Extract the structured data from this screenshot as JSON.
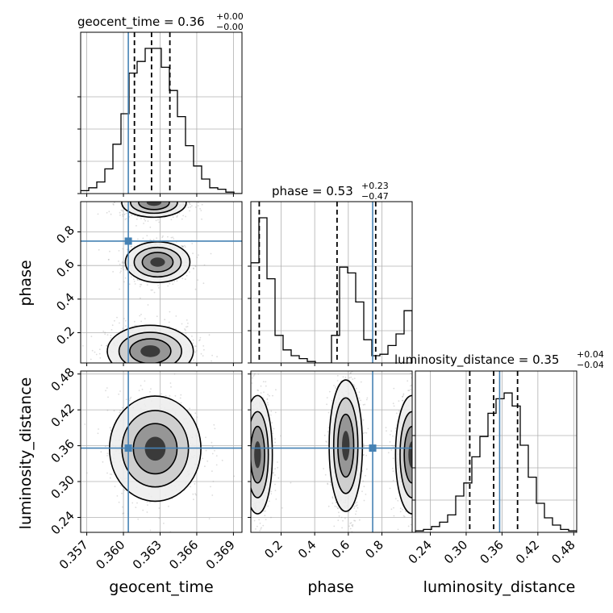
{
  "chart_data": {
    "type": "corner",
    "parameters": [
      "geocent_time",
      "phase",
      "luminosity_distance"
    ],
    "axis_labels": {
      "x": [
        "geocent_time",
        "phase",
        "luminosity_distance"
      ],
      "y": [
        "",
        "phase",
        "luminosity_distance"
      ]
    },
    "titles": [
      {
        "param": "geocent_time",
        "value": "0.36",
        "plus": "+0.00",
        "minus": "−0.00"
      },
      {
        "param": "phase",
        "value": "0.53",
        "plus": "+0.23",
        "minus": "−0.47"
      },
      {
        "param": "luminosity_distance",
        "value": "0.35",
        "plus": "+0.04",
        "minus": "−0.04"
      }
    ],
    "ranges": {
      "geocent_time": [
        0.3565,
        0.3697
      ],
      "phase": [
        0.02,
        0.98
      ],
      "luminosity_distance": [
        0.215,
        0.485
      ]
    },
    "ticks": {
      "geocent_time": [
        0.357,
        0.36,
        0.363,
        0.366,
        0.369
      ],
      "phase": [
        0.2,
        0.4,
        0.6,
        0.8
      ],
      "luminosity_distance": [
        0.24,
        0.3,
        0.36,
        0.42,
        0.48
      ]
    },
    "tick_labels": {
      "geocent_time": [
        "0.357",
        "0.360",
        "0.363",
        "0.366",
        "0.369"
      ],
      "phase": [
        "0.2",
        "0.4",
        "0.6",
        "0.8"
      ],
      "luminosity_distance": [
        "0.24",
        "0.30",
        "0.36",
        "0.42",
        "0.48"
      ]
    },
    "truths": {
      "geocent_time": 0.3604,
      "phase": 0.745,
      "luminosity_distance": 0.356
    },
    "quantiles": {
      "geocent_time": [
        0.3609,
        0.3623,
        0.3638
      ],
      "phase": [
        0.07,
        0.533,
        0.763
      ],
      "luminosity_distance": [
        0.306,
        0.346,
        0.386
      ]
    },
    "histograms": {
      "geocent_time": [
        0.02,
        0.04,
        0.08,
        0.17,
        0.34,
        0.55,
        0.83,
        0.91,
        1.0,
        1.0,
        0.87,
        0.71,
        0.53,
        0.33,
        0.19,
        0.1,
        0.04,
        0.03,
        0.01,
        0.0
      ],
      "phase": [
        0.69,
        1.0,
        0.58,
        0.19,
        0.09,
        0.05,
        0.03,
        0.01,
        0.0,
        0.0,
        0.19,
        0.66,
        0.62,
        0.42,
        0.16,
        0.05,
        0.06,
        0.12,
        0.2,
        0.36
      ],
      "luminosity_distance": [
        0.01,
        0.02,
        0.04,
        0.07,
        0.12,
        0.25,
        0.34,
        0.52,
        0.66,
        0.82,
        0.92,
        0.96,
        0.87,
        0.6,
        0.38,
        0.2,
        0.1,
        0.05,
        0.02,
        0.01
      ]
    },
    "contour_clusters": {
      "geocent_time_phase": [
        {
          "x": 0.3628,
          "y": 0.62,
          "sx": 0.0012,
          "sy": 0.055
        },
        {
          "x": 0.3622,
          "y": 0.09,
          "sx": 0.0016,
          "sy": 0.07
        },
        {
          "x": 0.3625,
          "y": 0.975,
          "sx": 0.0012,
          "sy": 0.04
        }
      ],
      "geocent_time_luminosity_distance": [
        {
          "x": 0.3626,
          "y": 0.355,
          "sx": 0.0017,
          "sy": 0.04
        }
      ],
      "phase_luminosity_distance": [
        {
          "x": 0.06,
          "y": 0.345,
          "sx": 0.04,
          "sy": 0.045
        },
        {
          "x": 0.585,
          "y": 0.36,
          "sx": 0.045,
          "sy": 0.05
        },
        {
          "x": 0.98,
          "y": 0.345,
          "sx": 0.045,
          "sy": 0.045
        }
      ]
    },
    "colors": {
      "truth": "#4682b4",
      "histogram": "#000000",
      "quantile": "#000000",
      "grid": "#b0b0b0",
      "samples": "#9a9a9a"
    },
    "grid": true
  }
}
